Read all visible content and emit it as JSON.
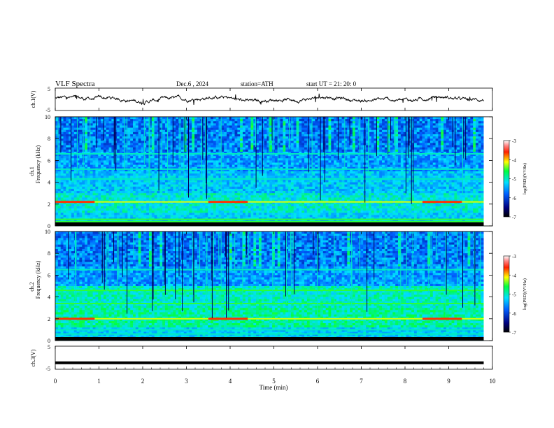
{
  "header": {
    "title": "VLF  Spectra",
    "date": "Dec.6  , 2024",
    "station": "station=ATH",
    "start_ut": "start  UT  =    21: 20: 0"
  },
  "chart_data": [
    {
      "type": "line",
      "panel": "ch1-waveform",
      "ylabel": "ch.1(V)",
      "ylim": [
        -5,
        5
      ],
      "yticks": [
        5,
        -5
      ],
      "xlim": [
        0,
        10
      ],
      "trace_color": "#000000"
    },
    {
      "type": "heatmap",
      "panel": "ch1-spectrogram",
      "ylabel_channel": "ch.1",
      "ylabel": "Frequency  (kHz)",
      "ylim": [
        0,
        10
      ],
      "yticks": [
        0,
        2,
        4,
        6,
        8,
        10
      ],
      "xlim": [
        0,
        9.8
      ],
      "narrowband_khz": [
        2.2,
        0.6,
        0.4,
        4.3,
        6.6,
        5.2
      ],
      "strong_bands_x_min": [
        [
          0,
          0.9
        ],
        [
          3.5,
          4.4
        ],
        [
          8.4,
          9.3
        ]
      ]
    },
    {
      "type": "heatmap",
      "panel": "ch2-spectrogram",
      "ylabel_channel": "ch.2",
      "ylabel": "Frequency  (kHz)",
      "ylim": [
        0,
        10
      ],
      "yticks": [
        0,
        2,
        4,
        6,
        8,
        10
      ],
      "xlim": [
        0,
        9.8
      ],
      "narrowband_khz": [
        2.0,
        3.4,
        4.6,
        1.0,
        0.6,
        6.5
      ],
      "strong_bands_x_min": [
        [
          0,
          0.9
        ],
        [
          3.5,
          4.4
        ],
        [
          8.4,
          9.3
        ]
      ]
    },
    {
      "type": "line",
      "panel": "ch3-waveform",
      "ylabel": "ch.3(V)",
      "ylim": [
        -5,
        5
      ],
      "yticks": [
        5,
        -5
      ],
      "level": [
        0,
        9.8,
        -2.2
      ],
      "trace_color": "#000000"
    }
  ],
  "xaxis": {
    "label": "Time  (min)",
    "ticks": [
      "0",
      "1",
      "2",
      "3",
      "4",
      "5",
      "6",
      "7",
      "8",
      "9",
      "10"
    ]
  },
  "colorbar": {
    "label": "log(PSD)(V²/Hz)",
    "ticks": [
      "-3",
      "-4",
      "-5",
      "-6",
      "-7"
    ],
    "range": [
      -7,
      -3
    ]
  },
  "colors": {
    "c_low": "#00007f",
    "c_mid": "#00c0ff",
    "c_green": "#00ff40",
    "c_yellow": "#ffff00",
    "c_high": "#ff0000"
  }
}
